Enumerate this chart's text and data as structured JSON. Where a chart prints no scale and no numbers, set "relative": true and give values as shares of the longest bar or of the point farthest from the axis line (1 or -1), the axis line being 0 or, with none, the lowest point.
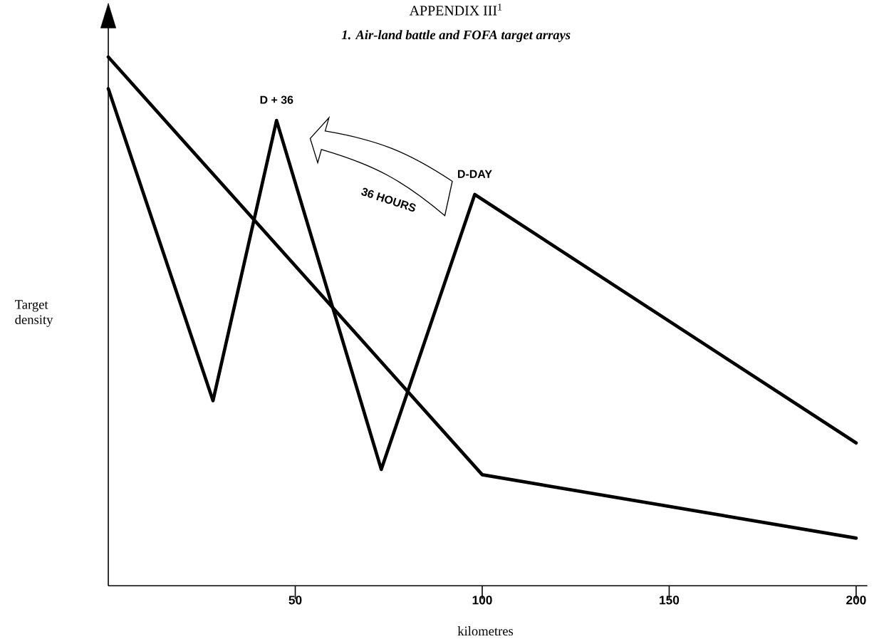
{
  "chart_data": {
    "type": "line",
    "title": "APPENDIX III$^{1}$",
    "subtitle": "1. Air-land battle and FOFA target arrays",
    "xlabel": "kilometres",
    "ylabel": "Target density",
    "relative": true,
    "xlim": [
      0,
      203
    ],
    "xticks": [
      50,
      100,
      150,
      200
    ],
    "grid": false,
    "marker": "none",
    "line_style": "solid",
    "series": [
      {
        "color": "#000000",
        "x": [
          0,
          100,
          200
        ],
        "values": [
          1.0,
          0.21,
          0.09
        ]
      },
      {
        "color": "#000000",
        "x": [
          0,
          28,
          45,
          73,
          98,
          200
        ],
        "values": [
          0.94,
          0.35,
          0.88,
          0.22,
          0.74,
          0.27
        ]
      }
    ],
    "annotations": [
      {
        "text": "D + 36",
        "x": 45,
        "y": 0.88
      },
      {
        "text": "D-DAY",
        "x": 98,
        "y": 0.74
      },
      "36 HOURS"
    ]
  }
}
